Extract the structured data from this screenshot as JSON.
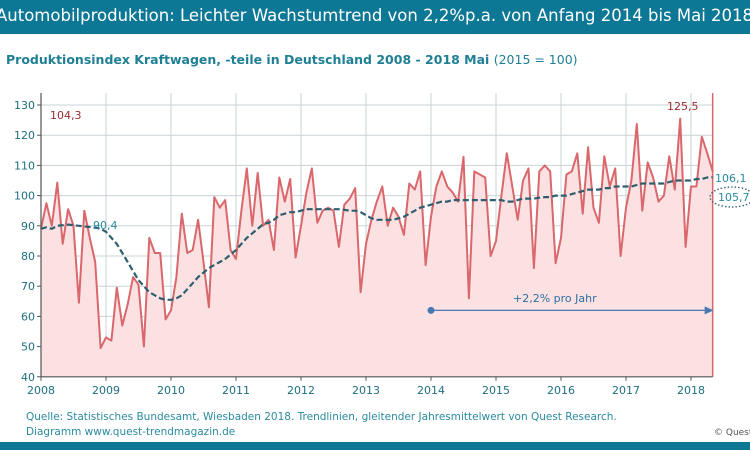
{
  "header": {
    "title": "Automobilproduktion: Leichter Wachstumtrend von 2,2%p.a. von Anfang  2014 bis Mai 2018"
  },
  "subtitle": {
    "main": "Produktionsindex Kraftwagen, -teile in Deutschland 2008 - 2018 Mai",
    "base": "(2015 = 100)"
  },
  "footer": {
    "source": "Quelle: Statistisches Bundesamt, Wiesbaden 2018. Trendlinien, gleitender Jahresmittelwert von Quest Research.",
    "diagram": "Diagramm  www.quest-trendmagazin.de",
    "copyright": "© Quest"
  },
  "colors": {
    "header": "#0d7896",
    "series": "#d9676b",
    "fill": "#fbe1e2",
    "trend": "#2f5f6e",
    "arrow": "#4a78b0"
  },
  "chart_data": {
    "type": "area",
    "x_start": "2008-01",
    "x_end": "2018-05",
    "frequency": "monthly",
    "ylim": [
      40,
      130
    ],
    "yticks": [
      40,
      50,
      60,
      70,
      80,
      90,
      100,
      110,
      120,
      130
    ],
    "xticks": [
      "2008",
      "2009",
      "2010",
      "2011",
      "2012",
      "2013",
      "2014",
      "2015",
      "2016",
      "2017",
      "2018"
    ],
    "grid": true,
    "series": [
      {
        "values": [
          89,
          97.5,
          90,
          104.3,
          84,
          95.5,
          90,
          64.5,
          95,
          86,
          78,
          49.5,
          53,
          52,
          69.5,
          57,
          64,
          73,
          70.5,
          50,
          86,
          81,
          81,
          59,
          62,
          73,
          94,
          81,
          82,
          92,
          78,
          63,
          99.5,
          96,
          98.5,
          82,
          79,
          95,
          109,
          90,
          107.5,
          90,
          92,
          82,
          106,
          98,
          105.5,
          79.5,
          90,
          101,
          109,
          91,
          95,
          96,
          95,
          83,
          97,
          99,
          102.5,
          68,
          84,
          92,
          98,
          103,
          90,
          96,
          93,
          87,
          104,
          102,
          108,
          77,
          93,
          103,
          108,
          103,
          101,
          98,
          112.8,
          66,
          108,
          107,
          106,
          80,
          85,
          100,
          114,
          103,
          92,
          105,
          109,
          76,
          108,
          110,
          108,
          77.6,
          86,
          107,
          108,
          114,
          94,
          116,
          96,
          91,
          113,
          103,
          109,
          80,
          96,
          105,
          123.7,
          95,
          111,
          106,
          98,
          100,
          113,
          102,
          125.5,
          83,
          103,
          103,
          119.5,
          114,
          108
        ]
      },
      {
        "values": [
          89,
          89.5,
          89,
          90,
          90.2,
          90.4,
          90.2,
          90,
          89.8,
          89.6,
          89.4,
          89,
          88,
          86,
          84,
          81,
          78,
          75,
          72,
          70,
          68,
          67,
          66,
          65.5,
          65.5,
          66,
          67,
          69,
          71,
          73,
          74.5,
          76,
          77,
          78,
          79,
          80.5,
          82,
          84,
          86,
          87.5,
          89,
          90.5,
          91,
          92,
          93.5,
          94,
          94.5,
          94.5,
          95,
          95.5,
          95.5,
          95.5,
          95.5,
          95.5,
          95.5,
          95.5,
          95.3,
          95,
          95,
          94.5,
          93.5,
          92.5,
          92,
          92,
          92,
          92,
          92.5,
          93,
          94,
          95,
          96,
          96.5,
          97,
          97.5,
          98,
          98,
          98.5,
          98.5,
          98.5,
          98.5,
          98.5,
          98.5,
          98.5,
          98.5,
          98.5,
          98.5,
          98,
          98,
          98.5,
          99,
          99,
          99,
          99.3,
          99.5,
          99.5,
          100,
          100,
          100,
          100.5,
          101,
          101.5,
          102,
          102,
          102,
          102.5,
          102.5,
          103,
          103,
          103,
          103,
          103.5,
          104,
          104,
          104,
          104,
          104,
          104.5,
          105,
          105,
          105,
          105,
          105.5,
          105.5,
          106,
          106.1
        ]
      }
    ],
    "annotations": {
      "peak_2008": "104,3",
      "trend_2008": "90,4",
      "peak_2017": "125,5",
      "trend_end": "106,1",
      "circled_end": "105,7",
      "growth": "+2,2% pro Jahr"
    },
    "growth_arrow": {
      "from": "2014-01",
      "to": "2018-05",
      "level": 62
    }
  }
}
